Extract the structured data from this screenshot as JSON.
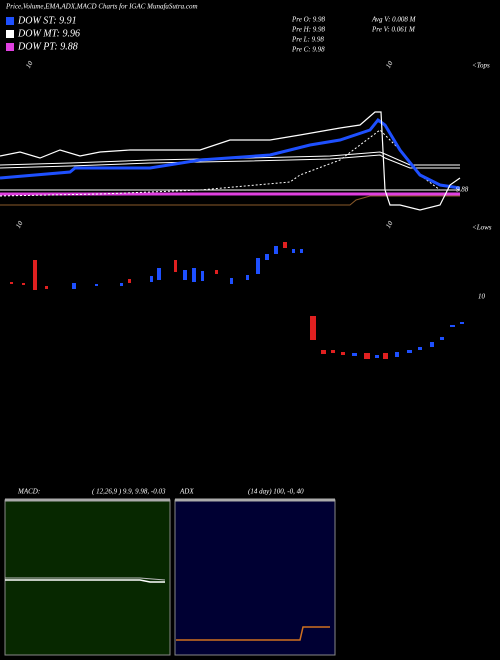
{
  "header": {
    "title": "Price,Volume,EMA,ADX,MACD Charts for IGAC MunafaSutra.com"
  },
  "legend": {
    "items": [
      "DOW ST: 9.91",
      "DOW MT: 9.96",
      "DOW PT: 9.88"
    ]
  },
  "stats": {
    "left": [
      "Pre  O: 9.98",
      "Pre  H: 9.98",
      "Pre  L: 9.98",
      "Pre  C: 9.98"
    ],
    "right": [
      "Avg V: 0.008  M",
      "Pre  V: 0.061 M"
    ]
  },
  "price_panel": {
    "top_labels": [
      "10",
      "10"
    ],
    "tops": "<Tops",
    "last_price": "9.88",
    "bottom_labels": [
      "10",
      "10"
    ],
    "lows": "<Lows"
  },
  "volume_panel": {
    "label": "10"
  },
  "macd": {
    "label": "MACD:",
    "params": "( 12,26,9 ) 9.9, 9.98, -0.03"
  },
  "adx": {
    "label": "ADX",
    "params": "(14  day) 100, -0, 40"
  }
}
